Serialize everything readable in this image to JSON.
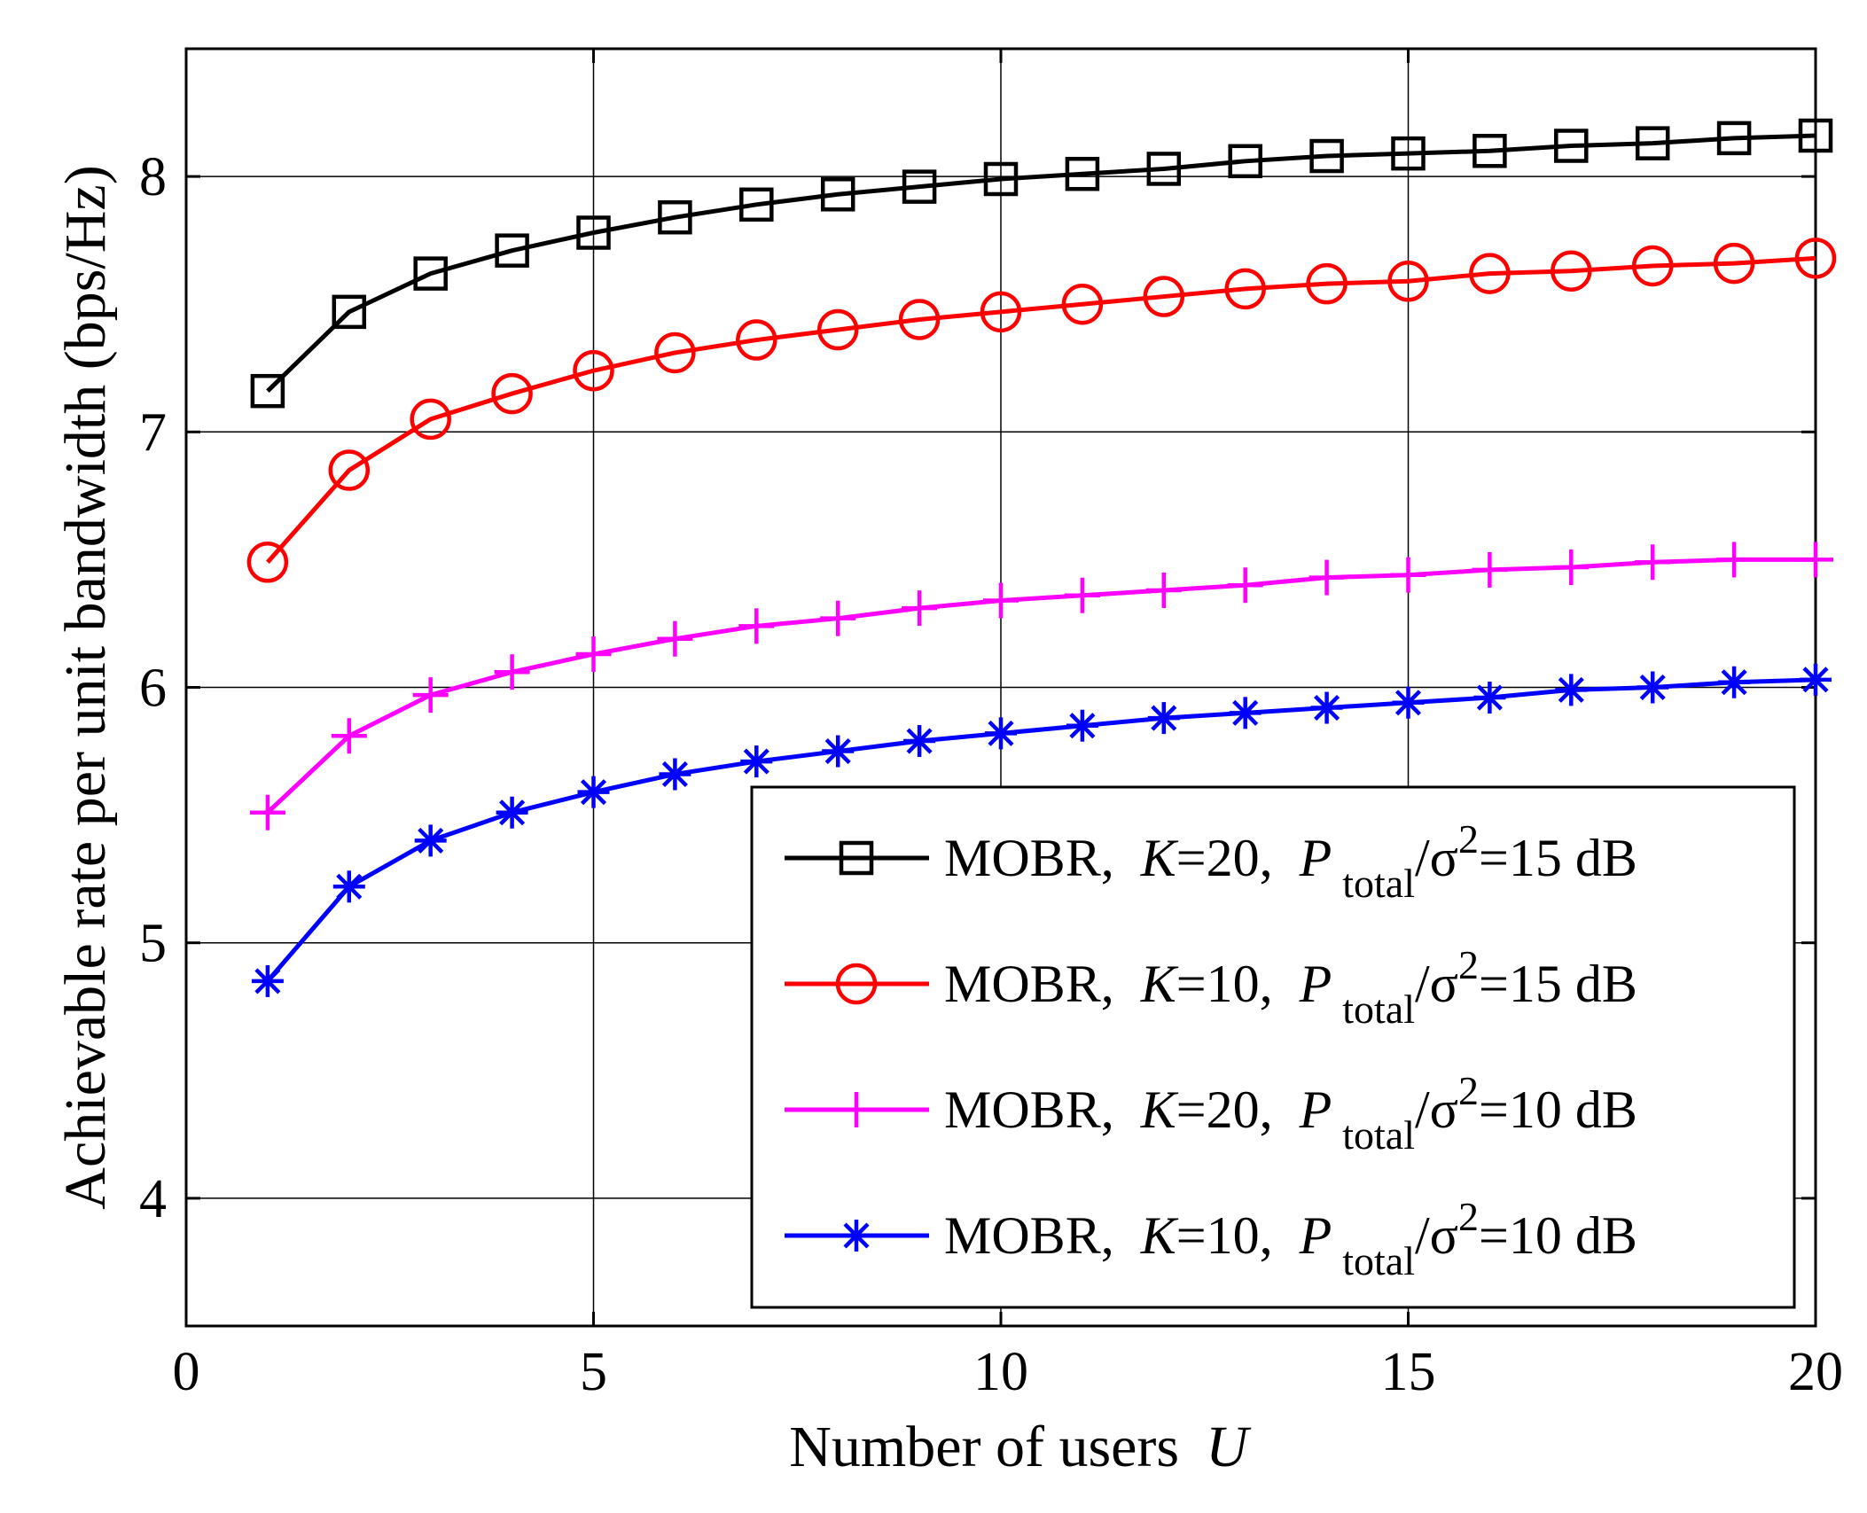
{
  "chart_data": {
    "type": "line",
    "title": "",
    "xlabel": "Number of users",
    "xlabel_var": "U",
    "ylabel": "Achievable rate per unit bandwidth (bps/Hz)",
    "xlim": [
      0,
      20
    ],
    "ylim": [
      3.5,
      8.5
    ],
    "xticks": [
      0,
      5,
      10,
      15,
      20
    ],
    "yticks": [
      4,
      5,
      6,
      7,
      8
    ],
    "grid": true,
    "legend_position": "bottom-right",
    "x": [
      1,
      2,
      3,
      4,
      5,
      6,
      7,
      8,
      9,
      10,
      11,
      12,
      13,
      14,
      15,
      16,
      17,
      18,
      19,
      20
    ],
    "series": [
      {
        "name": "MOBR, K=20, P total/σ2=15 dB",
        "label_prefix": "MOBR,",
        "label_k": "K",
        "label_k_value": "=20,",
        "label_p": "P",
        "label_sub": "total",
        "label_sigma": "/σ",
        "label_sup": "2",
        "label_tail": "=15 dB",
        "color": "#000000",
        "marker": "square",
        "values": [
          7.16,
          7.47,
          7.62,
          7.71,
          7.78,
          7.84,
          7.89,
          7.93,
          7.96,
          7.99,
          8.01,
          8.03,
          8.06,
          8.08,
          8.09,
          8.1,
          8.12,
          8.13,
          8.15,
          8.16
        ]
      },
      {
        "name": "MOBR, K=10, P total/σ2=15 dB",
        "label_prefix": "MOBR,",
        "label_k": "K",
        "label_k_value": "=10,",
        "label_p": "P",
        "label_sub": "total",
        "label_sigma": "/σ",
        "label_sup": "2",
        "label_tail": "=15 dB",
        "color": "#ff0000",
        "marker": "circle",
        "values": [
          6.49,
          6.85,
          7.05,
          7.15,
          7.24,
          7.31,
          7.36,
          7.4,
          7.44,
          7.47,
          7.5,
          7.53,
          7.56,
          7.58,
          7.59,
          7.62,
          7.63,
          7.65,
          7.66,
          7.68
        ]
      },
      {
        "name": "MOBR, K=20, P total/σ2=10 dB",
        "label_prefix": "MOBR,",
        "label_k": "K",
        "label_k_value": "=20,",
        "label_p": "P",
        "label_sub": "total",
        "label_sigma": "/σ",
        "label_sup": "2",
        "label_tail": "=10 dB",
        "color": "#ff00ff",
        "marker": "plus",
        "values": [
          5.51,
          5.81,
          5.97,
          6.06,
          6.13,
          6.19,
          6.24,
          6.27,
          6.31,
          6.34,
          6.36,
          6.38,
          6.4,
          6.43,
          6.44,
          6.46,
          6.47,
          6.49,
          6.5,
          6.5
        ]
      },
      {
        "name": "MOBR, K=10, P total/σ2=10 dB",
        "label_prefix": "MOBR,",
        "label_k": "K",
        "label_k_value": "=10,",
        "label_p": "P",
        "label_sub": "total",
        "label_sigma": "/σ",
        "label_sup": "2",
        "label_tail": "=10 dB",
        "color": "#0000ff",
        "marker": "asterisk",
        "values": [
          4.85,
          5.22,
          5.4,
          5.51,
          5.59,
          5.66,
          5.71,
          5.75,
          5.79,
          5.82,
          5.85,
          5.88,
          5.9,
          5.92,
          5.94,
          5.96,
          5.99,
          6.0,
          6.02,
          6.03
        ]
      }
    ]
  }
}
